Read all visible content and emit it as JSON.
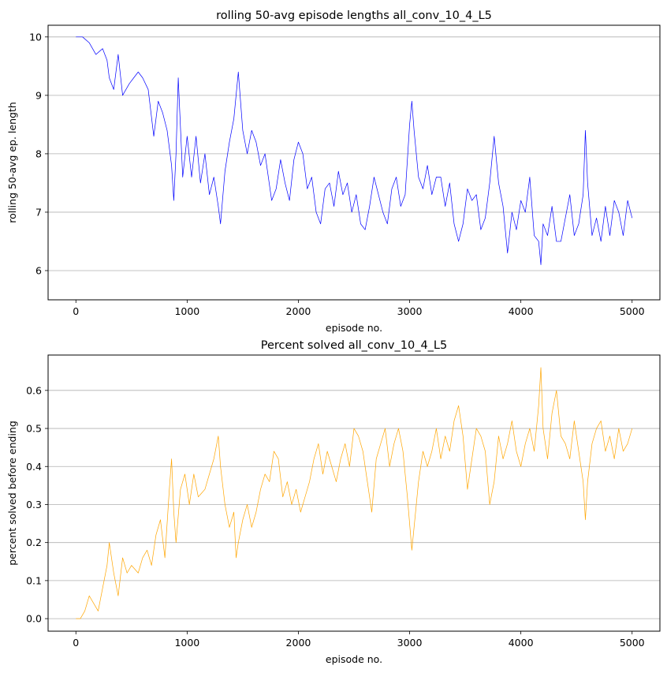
{
  "chart_data": [
    {
      "type": "line",
      "title": "rolling 50-avg episode lengths all_conv_10_4_L5",
      "xlabel": "episode no.",
      "ylabel": "rolling 50-avg ep. length",
      "xlim": [
        -250,
        5250
      ],
      "ylim": [
        5.5,
        10.2
      ],
      "xticks": [
        0,
        1000,
        2000,
        3000,
        4000,
        5000
      ],
      "yticks": [
        6,
        7,
        8,
        9,
        10
      ],
      "grid": "y-major",
      "color": "#0000ff",
      "x": [
        0,
        60,
        120,
        180,
        240,
        280,
        300,
        340,
        380,
        420,
        480,
        520,
        560,
        600,
        650,
        700,
        740,
        780,
        820,
        860,
        880,
        900,
        920,
        960,
        1000,
        1040,
        1080,
        1120,
        1160,
        1200,
        1240,
        1280,
        1300,
        1340,
        1380,
        1420,
        1460,
        1500,
        1540,
        1580,
        1620,
        1660,
        1700,
        1760,
        1800,
        1840,
        1880,
        1920,
        1960,
        2000,
        2040,
        2080,
        2120,
        2160,
        2200,
        2240,
        2280,
        2320,
        2360,
        2400,
        2440,
        2480,
        2520,
        2560,
        2600,
        2640,
        2680,
        2720,
        2760,
        2800,
        2840,
        2880,
        2920,
        2960,
        3000,
        3020,
        3040,
        3080,
        3120,
        3160,
        3200,
        3240,
        3280,
        3320,
        3360,
        3400,
        3440,
        3480,
        3520,
        3560,
        3600,
        3640,
        3680,
        3720,
        3760,
        3800,
        3840,
        3880,
        3920,
        3960,
        4000,
        4040,
        4080,
        4120,
        4160,
        4180,
        4200,
        4240,
        4280,
        4320,
        4360,
        4400,
        4440,
        4480,
        4520,
        4560,
        4580,
        4600,
        4640,
        4680,
        4720,
        4760,
        4800,
        4840,
        4880,
        4920,
        4960,
        5000
      ],
      "y": [
        10.0,
        10.0,
        9.9,
        9.7,
        9.8,
        9.6,
        9.3,
        9.1,
        9.7,
        9.0,
        9.2,
        9.3,
        9.4,
        9.3,
        9.1,
        8.3,
        8.9,
        8.7,
        8.4,
        7.8,
        7.2,
        8.0,
        9.3,
        7.6,
        8.3,
        7.6,
        8.3,
        7.5,
        8.0,
        7.3,
        7.6,
        7.1,
        6.8,
        7.7,
        8.2,
        8.6,
        9.4,
        8.4,
        8.0,
        8.4,
        8.2,
        7.8,
        8.0,
        7.2,
        7.4,
        7.9,
        7.5,
        7.2,
        7.9,
        8.2,
        8.0,
        7.4,
        7.6,
        7.0,
        6.8,
        7.4,
        7.5,
        7.1,
        7.7,
        7.3,
        7.5,
        7.0,
        7.3,
        6.8,
        6.7,
        7.1,
        7.6,
        7.3,
        7.0,
        6.8,
        7.4,
        7.6,
        7.1,
        7.3,
        8.5,
        8.9,
        8.4,
        7.6,
        7.4,
        7.8,
        7.3,
        7.6,
        7.6,
        7.1,
        7.5,
        6.8,
        6.5,
        6.8,
        7.4,
        7.2,
        7.3,
        6.7,
        6.9,
        7.5,
        8.3,
        7.5,
        7.1,
        6.3,
        7.0,
        6.7,
        7.2,
        7.0,
        7.6,
        6.6,
        6.5,
        6.1,
        6.8,
        6.6,
        7.1,
        6.5,
        6.5,
        6.9,
        7.3,
        6.6,
        6.8,
        7.3,
        8.4,
        7.5,
        6.6,
        6.9,
        6.5,
        7.1,
        6.6,
        7.2,
        7.0,
        6.6,
        7.2,
        6.9
      ]
    },
    {
      "type": "line",
      "title": "Percent solved all_conv_10_4_L5",
      "xlabel": "episode no.",
      "ylabel": "percent solved before ending",
      "xlim": [
        -250,
        5250
      ],
      "ylim": [
        -0.033,
        0.693
      ],
      "xticks": [
        0,
        1000,
        2000,
        3000,
        4000,
        5000
      ],
      "yticks": [
        0.0,
        0.1,
        0.2,
        0.3,
        0.4,
        0.5,
        0.6
      ],
      "grid": "y-major",
      "color": "#ffa500",
      "x": [
        0,
        40,
        80,
        120,
        160,
        200,
        240,
        280,
        300,
        340,
        380,
        420,
        460,
        500,
        560,
        600,
        640,
        680,
        720,
        760,
        800,
        840,
        860,
        880,
        900,
        940,
        980,
        1020,
        1060,
        1100,
        1160,
        1200,
        1240,
        1280,
        1300,
        1340,
        1380,
        1420,
        1440,
        1460,
        1500,
        1540,
        1580,
        1620,
        1660,
        1700,
        1740,
        1780,
        1820,
        1860,
        1900,
        1940,
        1980,
        2020,
        2060,
        2100,
        2140,
        2180,
        2220,
        2260,
        2300,
        2340,
        2380,
        2420,
        2460,
        2500,
        2540,
        2580,
        2620,
        2660,
        2700,
        2740,
        2780,
        2820,
        2860,
        2900,
        2940,
        2980,
        3020,
        3040,
        3080,
        3120,
        3160,
        3200,
        3240,
        3280,
        3320,
        3360,
        3400,
        3440,
        3480,
        3520,
        3560,
        3600,
        3640,
        3680,
        3720,
        3760,
        3800,
        3840,
        3880,
        3920,
        3960,
        4000,
        4040,
        4080,
        4120,
        4160,
        4180,
        4200,
        4240,
        4280,
        4320,
        4360,
        4400,
        4440,
        4480,
        4520,
        4560,
        4580,
        4600,
        4640,
        4680,
        4720,
        4760,
        4800,
        4840,
        4880,
        4920,
        4960,
        5000
      ],
      "y": [
        0.0,
        0.0,
        0.02,
        0.06,
        0.04,
        0.02,
        0.08,
        0.14,
        0.2,
        0.12,
        0.06,
        0.16,
        0.12,
        0.14,
        0.12,
        0.16,
        0.18,
        0.14,
        0.22,
        0.26,
        0.16,
        0.34,
        0.42,
        0.28,
        0.2,
        0.34,
        0.38,
        0.3,
        0.38,
        0.32,
        0.34,
        0.38,
        0.42,
        0.48,
        0.4,
        0.3,
        0.24,
        0.28,
        0.16,
        0.2,
        0.26,
        0.3,
        0.24,
        0.28,
        0.34,
        0.38,
        0.36,
        0.44,
        0.42,
        0.32,
        0.36,
        0.3,
        0.34,
        0.28,
        0.32,
        0.36,
        0.42,
        0.46,
        0.38,
        0.44,
        0.4,
        0.36,
        0.42,
        0.46,
        0.4,
        0.5,
        0.48,
        0.44,
        0.36,
        0.28,
        0.42,
        0.46,
        0.5,
        0.4,
        0.46,
        0.5,
        0.44,
        0.32,
        0.18,
        0.24,
        0.36,
        0.44,
        0.4,
        0.44,
        0.5,
        0.42,
        0.48,
        0.44,
        0.52,
        0.56,
        0.48,
        0.34,
        0.42,
        0.5,
        0.48,
        0.44,
        0.3,
        0.36,
        0.48,
        0.42,
        0.46,
        0.52,
        0.44,
        0.4,
        0.46,
        0.5,
        0.44,
        0.56,
        0.66,
        0.5,
        0.42,
        0.54,
        0.6,
        0.48,
        0.46,
        0.42,
        0.52,
        0.44,
        0.36,
        0.26,
        0.36,
        0.46,
        0.5,
        0.52,
        0.44,
        0.48,
        0.42,
        0.5,
        0.44,
        0.46,
        0.5
      ]
    }
  ]
}
